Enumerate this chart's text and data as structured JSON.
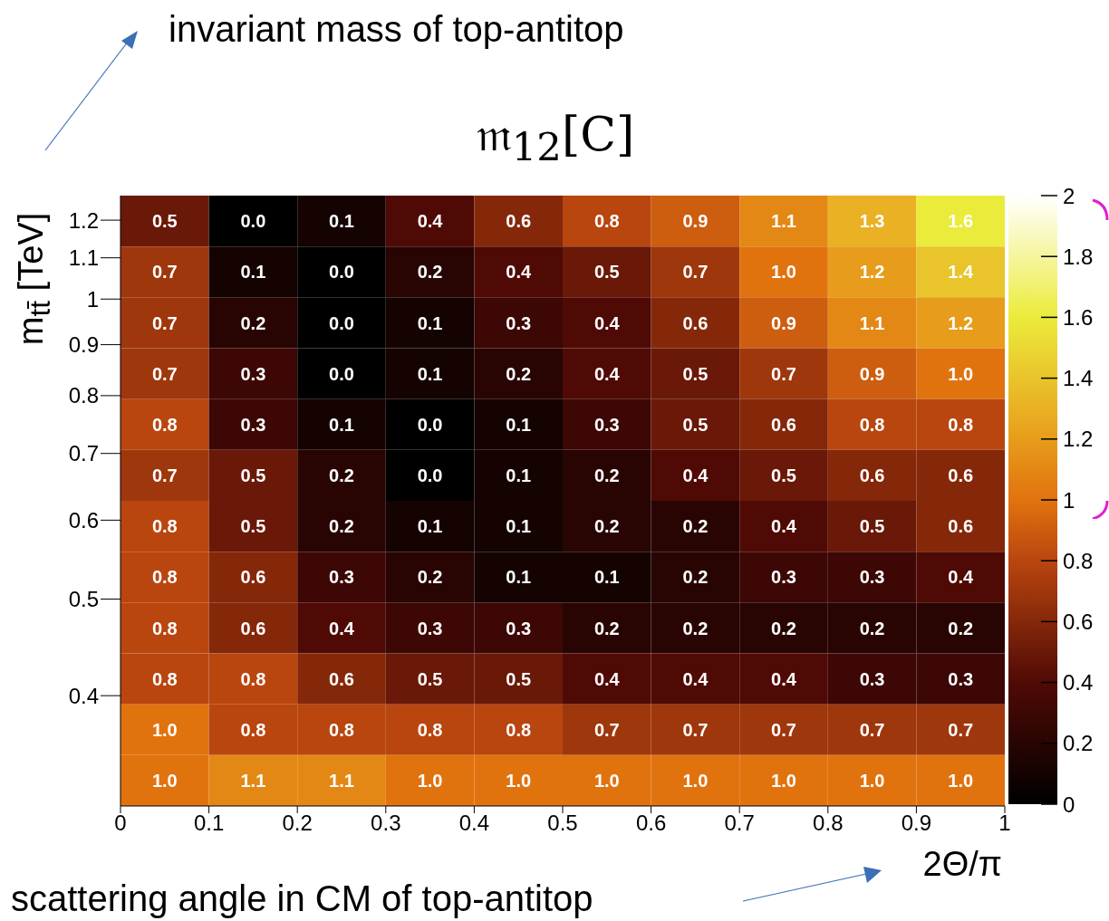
{
  "chart_data": {
    "type": "heatmap",
    "title": "𝔪$_{12}$[C]",
    "xlabel": "2Θ/π",
    "ylabel": "m$_{tt̄}$ [TeV]",
    "annotations": [
      "invariant mass of top-antitop",
      "scattering angle in CM of top-antitop"
    ],
    "xlim": [
      0,
      1
    ],
    "xticks": [
      0,
      0.1,
      0.2,
      0.3,
      0.4,
      0.5,
      0.6,
      0.7,
      0.8,
      0.9,
      1
    ],
    "ylim": [
      0.31,
      1.27
    ],
    "yticks": [
      0.4,
      0.5,
      0.6,
      0.7,
      0.8,
      0.9,
      1,
      1.1,
      1.2
    ],
    "log": "y",
    "clim": [
      0,
      2
    ],
    "cticks": [
      0,
      0.2,
      0.4,
      0.6,
      0.8,
      1,
      1.2,
      1.4,
      1.6,
      1.8,
      2
    ],
    "cells": [
      [
        0.5,
        0.0,
        0.1,
        0.4,
        0.6,
        0.8,
        0.9,
        1.1,
        1.3,
        1.6
      ],
      [
        0.7,
        0.1,
        0.0,
        0.2,
        0.4,
        0.5,
        0.7,
        1.0,
        1.2,
        1.4
      ],
      [
        0.7,
        0.2,
        0.0,
        0.1,
        0.3,
        0.4,
        0.6,
        0.9,
        1.1,
        1.2
      ],
      [
        0.7,
        0.3,
        0.0,
        0.1,
        0.2,
        0.4,
        0.5,
        0.7,
        0.9,
        1.0
      ],
      [
        0.8,
        0.3,
        0.1,
        0.0,
        0.1,
        0.3,
        0.5,
        0.6,
        0.8,
        0.8
      ],
      [
        0.7,
        0.5,
        0.2,
        0.0,
        0.1,
        0.2,
        0.4,
        0.5,
        0.6,
        0.6
      ],
      [
        0.8,
        0.5,
        0.2,
        0.1,
        0.1,
        0.2,
        0.2,
        0.4,
        0.5,
        0.6
      ],
      [
        0.8,
        0.6,
        0.3,
        0.2,
        0.1,
        0.1,
        0.2,
        0.3,
        0.3,
        0.4
      ],
      [
        0.8,
        0.6,
        0.4,
        0.3,
        0.3,
        0.2,
        0.2,
        0.2,
        0.2,
        0.2
      ],
      [
        0.8,
        0.8,
        0.6,
        0.5,
        0.5,
        0.4,
        0.4,
        0.4,
        0.3,
        0.3
      ],
      [
        1.0,
        0.8,
        0.8,
        0.8,
        0.8,
        0.7,
        0.7,
        0.7,
        0.7,
        0.7
      ],
      [
        1.0,
        1.1,
        1.1,
        1.0,
        1.0,
        1.0,
        1.0,
        1.0,
        1.0,
        1.0
      ]
    ],
    "cell_labels": [
      [
        "0.5",
        "0.0",
        "0.1",
        "0.4",
        "0.6",
        "0.8",
        "0.9",
        "1.1",
        "1.3",
        "1.6"
      ],
      [
        "0.7",
        "0.1",
        "0.0",
        "0.2",
        "0.4",
        "0.5",
        "0.7",
        "1.0",
        "1.2",
        "1.4"
      ],
      [
        "0.7",
        "0.2",
        "0.0",
        "0.1",
        "0.3",
        "0.4",
        "0.6",
        "0.9",
        "1.1",
        "1.2"
      ],
      [
        "0.7",
        "0.3",
        "0.0",
        "0.1",
        "0.2",
        "0.4",
        "0.5",
        "0.7",
        "0.9",
        "1.0"
      ],
      [
        "0.8",
        "0.3",
        "0.1",
        "0.0",
        "0.1",
        "0.3",
        "0.5",
        "0.6",
        "0.8",
        "0.8"
      ],
      [
        "0.7",
        "0.5",
        "0.2",
        "0.0",
        "0.1",
        "0.2",
        "0.4",
        "0.5",
        "0.6",
        "0.6"
      ],
      [
        "0.8",
        "0.5",
        "0.2",
        "0.1",
        "0.1",
        "0.2",
        "0.2",
        "0.4",
        "0.5",
        "0.6"
      ],
      [
        "0.8",
        "0.6",
        "0.3",
        "0.2",
        "0.1",
        "0.1",
        "0.2",
        "0.3",
        "0.3",
        "0.4"
      ],
      [
        "0.8",
        "0.6",
        "0.4",
        "0.3",
        "0.3",
        "0.2",
        "0.2",
        "0.2",
        "0.2",
        "0.2"
      ],
      [
        "0.8",
        "0.8",
        "0.6",
        "0.5",
        "0.5",
        "0.4",
        "0.4",
        "0.4",
        "0.3",
        "0.3"
      ],
      [
        "1.0",
        "0.8",
        "0.8",
        "0.8",
        "0.8",
        "0.7",
        "0.7",
        "0.7",
        "0.7",
        "0.7"
      ],
      [
        "1.0",
        "1.1",
        "1.1",
        "1.0",
        "1.0",
        "1.0",
        "1.0",
        "1.0",
        "1.0",
        "1.0"
      ]
    ]
  }
}
